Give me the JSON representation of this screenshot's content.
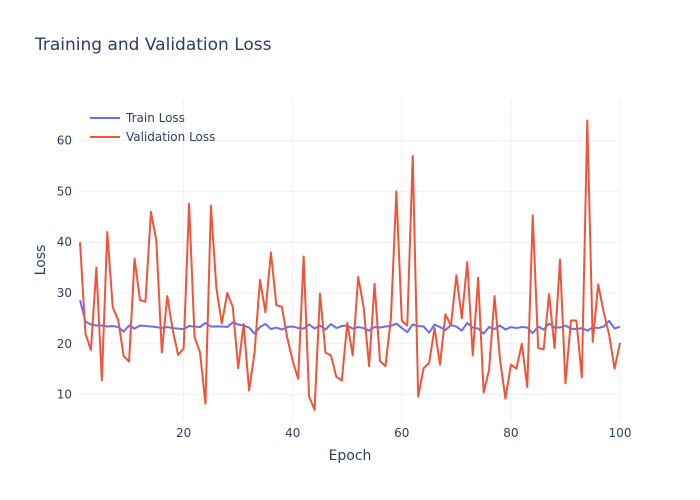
{
  "chart_data": {
    "type": "line",
    "title": "Training and Validation Loss",
    "xlabel": "Epoch",
    "ylabel": "Loss",
    "xlim": [
      1,
      100
    ],
    "ylim": [
      5,
      68
    ],
    "x_ticks": [
      20,
      40,
      60,
      80,
      100
    ],
    "y_ticks": [
      10,
      20,
      30,
      40,
      50,
      60
    ],
    "grid": true,
    "legend_position": "top-left",
    "x": [
      1,
      2,
      3,
      4,
      5,
      6,
      7,
      8,
      9,
      10,
      11,
      12,
      13,
      14,
      15,
      16,
      17,
      18,
      19,
      20,
      21,
      22,
      23,
      24,
      25,
      26,
      27,
      28,
      29,
      30,
      31,
      32,
      33,
      34,
      35,
      36,
      37,
      38,
      39,
      40,
      41,
      42,
      43,
      44,
      45,
      46,
      47,
      48,
      49,
      50,
      51,
      52,
      53,
      54,
      55,
      56,
      57,
      58,
      59,
      60,
      61,
      62,
      63,
      64,
      65,
      66,
      67,
      68,
      69,
      70,
      71,
      72,
      73,
      74,
      75,
      76,
      77,
      78,
      79,
      80,
      81,
      82,
      83,
      84,
      85,
      86,
      87,
      88,
      89,
      90,
      91,
      92,
      93,
      94,
      95,
      96,
      97,
      98,
      99,
      100
    ],
    "series": [
      {
        "name": "Train Loss",
        "color": "#636efa",
        "values": [
          28.6,
          24.4,
          23.8,
          23.6,
          23.6,
          23.4,
          23.5,
          23.3,
          22.4,
          23.6,
          23.0,
          23.6,
          23.5,
          23.4,
          23.3,
          23.1,
          23.3,
          23.1,
          23.0,
          22.9,
          23.5,
          23.4,
          23.3,
          24.1,
          23.4,
          23.4,
          23.4,
          23.3,
          24.2,
          23.8,
          23.6,
          23.2,
          22.0,
          23.3,
          23.9,
          22.9,
          23.2,
          22.8,
          23.3,
          23.4,
          23.1,
          23.0,
          23.8,
          23.0,
          23.6,
          22.8,
          23.9,
          23.1,
          23.5,
          23.6,
          23.0,
          23.3,
          23.1,
          22.6,
          23.3,
          23.2,
          23.4,
          23.5,
          24.0,
          23.1,
          22.3,
          23.8,
          23.5,
          23.4,
          22.2,
          23.8,
          23.3,
          22.7,
          23.7,
          23.4,
          22.6,
          24.1,
          23.2,
          23.0,
          22.0,
          23.3,
          22.9,
          23.6,
          22.8,
          23.3,
          23.1,
          23.3,
          23.2,
          22.1,
          23.4,
          22.8,
          24.0,
          23.2,
          23.2,
          23.6,
          23.0,
          22.9,
          23.1,
          22.6,
          23.2,
          23.1,
          23.4,
          24.5,
          23.0,
          23.4
        ]
      },
      {
        "name": "Validation Loss",
        "color": "#ef553b",
        "values": [
          40.0,
          22.0,
          18.8,
          35.0,
          12.8,
          42.0,
          27.2,
          24.7,
          17.6,
          16.5,
          36.8,
          28.6,
          28.3,
          46.0,
          40.3,
          18.3,
          29.4,
          22.7,
          17.8,
          19.1,
          47.6,
          21.3,
          18.3,
          8.2,
          47.2,
          31.0,
          24.0,
          30.0,
          27.3,
          15.2,
          23.9,
          10.8,
          18.3,
          32.6,
          26.2,
          38.0,
          27.6,
          27.3,
          21.2,
          16.6,
          13.1,
          37.2,
          9.6,
          7.0,
          29.9,
          18.3,
          17.7,
          13.5,
          12.8,
          24.1,
          17.7,
          33.2,
          27.2,
          15.6,
          31.8,
          16.6,
          15.6,
          25.0,
          50.0,
          24.5,
          23.6,
          57.0,
          9.6,
          15.2,
          16.2,
          23.1,
          15.9,
          25.8,
          23.6,
          33.5,
          25.0,
          36.1,
          17.7,
          33.0,
          10.4,
          14.9,
          29.4,
          16.9,
          9.2,
          15.9,
          15.1,
          20.0,
          11.5,
          45.3,
          19.2,
          18.9,
          29.8,
          19.2,
          36.6,
          12.2,
          24.6,
          24.6,
          13.4,
          64.0,
          20.4,
          31.7,
          26.3,
          21.8,
          15.1,
          20.2
        ]
      }
    ]
  }
}
